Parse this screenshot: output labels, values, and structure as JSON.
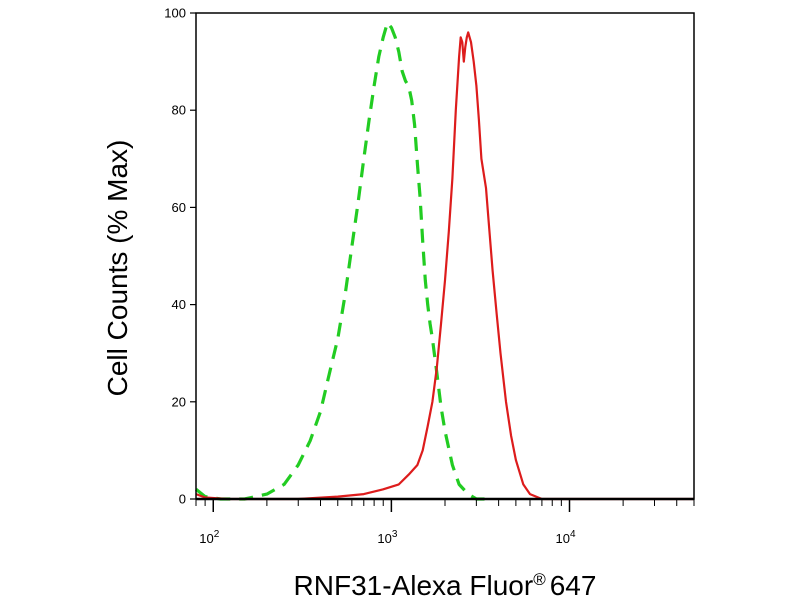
{
  "chart_data": {
    "type": "line",
    "title": "",
    "xlabel": {
      "main": "RNF31-Alexa Fluor",
      "superscript": "®",
      "suffix": "647"
    },
    "ylabel": "Cell Counts (% Max)",
    "x_scale": "log",
    "xlim": [
      80,
      50000
    ],
    "ylim": [
      0,
      100
    ],
    "grid": false,
    "legend": "none",
    "x_ticks": [
      {
        "value": 100,
        "base": "10",
        "exp": "2"
      },
      {
        "value": 1000,
        "base": "10",
        "exp": "3"
      },
      {
        "value": 10000,
        "base": "10",
        "exp": "4"
      }
    ],
    "y_ticks": [
      {
        "value": 0,
        "label": "0"
      },
      {
        "value": 20,
        "label": "20"
      },
      {
        "value": 40,
        "label": "40"
      },
      {
        "value": 60,
        "label": "60"
      },
      {
        "value": 80,
        "label": "80"
      },
      {
        "value": 100,
        "label": "100"
      }
    ],
    "series": [
      {
        "id": "control",
        "color": "#22cc22",
        "style": "dashed",
        "points": [
          [
            80,
            2
          ],
          [
            90,
            0.5
          ],
          [
            110,
            0
          ],
          [
            150,
            0
          ],
          [
            200,
            1
          ],
          [
            250,
            3
          ],
          [
            300,
            7
          ],
          [
            350,
            12
          ],
          [
            400,
            18
          ],
          [
            450,
            26
          ],
          [
            500,
            33
          ],
          [
            550,
            42
          ],
          [
            600,
            52
          ],
          [
            650,
            61
          ],
          [
            700,
            70
          ],
          [
            750,
            78
          ],
          [
            800,
            85
          ],
          [
            850,
            91
          ],
          [
            900,
            95
          ],
          [
            950,
            98
          ],
          [
            1000,
            97
          ],
          [
            1050,
            95
          ],
          [
            1100,
            92
          ],
          [
            1150,
            88
          ],
          [
            1200,
            86
          ],
          [
            1250,
            85
          ],
          [
            1300,
            82
          ],
          [
            1350,
            77
          ],
          [
            1400,
            69
          ],
          [
            1450,
            62
          ],
          [
            1500,
            53
          ],
          [
            1550,
            45
          ],
          [
            1600,
            40
          ],
          [
            1650,
            36
          ],
          [
            1700,
            33
          ],
          [
            1800,
            26
          ],
          [
            1900,
            19
          ],
          [
            2000,
            14
          ],
          [
            2200,
            7
          ],
          [
            2400,
            3
          ],
          [
            2700,
            1
          ],
          [
            3000,
            0
          ],
          [
            3500,
            0
          ]
        ]
      },
      {
        "id": "rnf31",
        "color": "#dd1c1c",
        "style": "solid",
        "points": [
          [
            80,
            1
          ],
          [
            90,
            0.3
          ],
          [
            120,
            0
          ],
          [
            300,
            0
          ],
          [
            500,
            0.5
          ],
          [
            700,
            1
          ],
          [
            900,
            2
          ],
          [
            1100,
            3
          ],
          [
            1250,
            5
          ],
          [
            1400,
            7
          ],
          [
            1500,
            10
          ],
          [
            1600,
            15
          ],
          [
            1700,
            20
          ],
          [
            1800,
            27
          ],
          [
            1900,
            36
          ],
          [
            2000,
            45
          ],
          [
            2100,
            55
          ],
          [
            2200,
            66
          ],
          [
            2300,
            80
          ],
          [
            2400,
            91
          ],
          [
            2450,
            95
          ],
          [
            2500,
            94
          ],
          [
            2550,
            90
          ],
          [
            2600,
            93
          ],
          [
            2650,
            95
          ],
          [
            2700,
            96
          ],
          [
            2800,
            94
          ],
          [
            2900,
            90
          ],
          [
            3000,
            85
          ],
          [
            3100,
            78
          ],
          [
            3200,
            70
          ],
          [
            3300,
            67
          ],
          [
            3400,
            64
          ],
          [
            3500,
            58
          ],
          [
            3700,
            47
          ],
          [
            3900,
            38
          ],
          [
            4100,
            30
          ],
          [
            4400,
            20
          ],
          [
            4700,
            13
          ],
          [
            5000,
            8
          ],
          [
            5500,
            3
          ],
          [
            6000,
            1
          ],
          [
            7000,
            0
          ],
          [
            10000,
            0
          ],
          [
            50000,
            0
          ]
        ]
      }
    ]
  }
}
